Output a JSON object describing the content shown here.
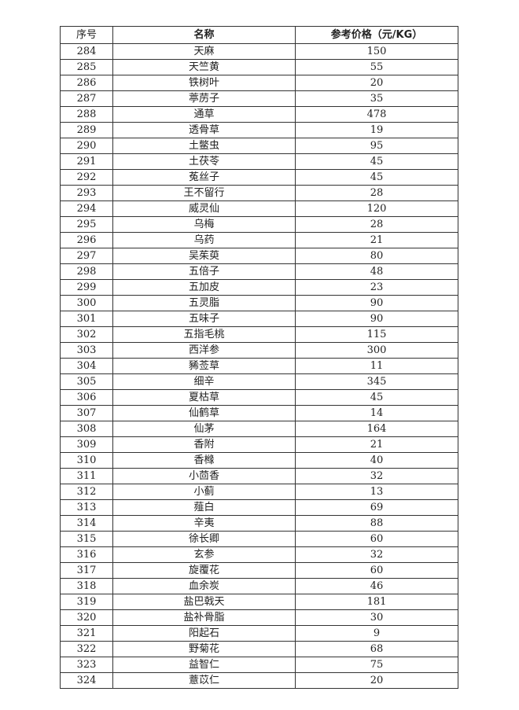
{
  "table": {
    "headers": [
      "序号",
      "名称",
      "参考价格（元/KG）"
    ],
    "rows": [
      [
        "284",
        "天麻",
        "150"
      ],
      [
        "285",
        "天竺黄",
        "55"
      ],
      [
        "286",
        "铁树叶",
        "20"
      ],
      [
        "287",
        "葶苈子",
        "35"
      ],
      [
        "288",
        "通草",
        "478"
      ],
      [
        "289",
        "透骨草",
        "19"
      ],
      [
        "290",
        "土鳖虫",
        "95"
      ],
      [
        "291",
        "土茯苓",
        "45"
      ],
      [
        "292",
        "菟丝子",
        "45"
      ],
      [
        "293",
        "王不留行",
        "28"
      ],
      [
        "294",
        "威灵仙",
        "120"
      ],
      [
        "295",
        "乌梅",
        "28"
      ],
      [
        "296",
        "乌药",
        "21"
      ],
      [
        "297",
        "吴茱萸",
        "80"
      ],
      [
        "298",
        "五倍子",
        "48"
      ],
      [
        "299",
        "五加皮",
        "23"
      ],
      [
        "300",
        "五灵脂",
        "90"
      ],
      [
        "301",
        "五味子",
        "90"
      ],
      [
        "302",
        "五指毛桃",
        "115"
      ],
      [
        "303",
        "西洋参",
        "300"
      ],
      [
        "304",
        "豨莶草",
        "11"
      ],
      [
        "305",
        "细辛",
        "345"
      ],
      [
        "306",
        "夏枯草",
        "45"
      ],
      [
        "307",
        "仙鹤草",
        "14"
      ],
      [
        "308",
        "仙茅",
        "164"
      ],
      [
        "309",
        "香附",
        "21"
      ],
      [
        "310",
        "香橼",
        "40"
      ],
      [
        "311",
        "小茴香",
        "32"
      ],
      [
        "312",
        "小蓟",
        "13"
      ],
      [
        "313",
        "薤白",
        "69"
      ],
      [
        "314",
        "辛夷",
        "88"
      ],
      [
        "315",
        "徐长卿",
        "60"
      ],
      [
        "316",
        "玄参",
        "32"
      ],
      [
        "317",
        "旋覆花",
        "60"
      ],
      [
        "318",
        "血余炭",
        "46"
      ],
      [
        "319",
        "盐巴戟天",
        "181"
      ],
      [
        "320",
        "盐补骨脂",
        "30"
      ],
      [
        "321",
        "阳起石",
        "9"
      ],
      [
        "322",
        "野菊花",
        "68"
      ],
      [
        "323",
        "益智仁",
        "75"
      ],
      [
        "324",
        "薏苡仁",
        "20"
      ]
    ]
  }
}
